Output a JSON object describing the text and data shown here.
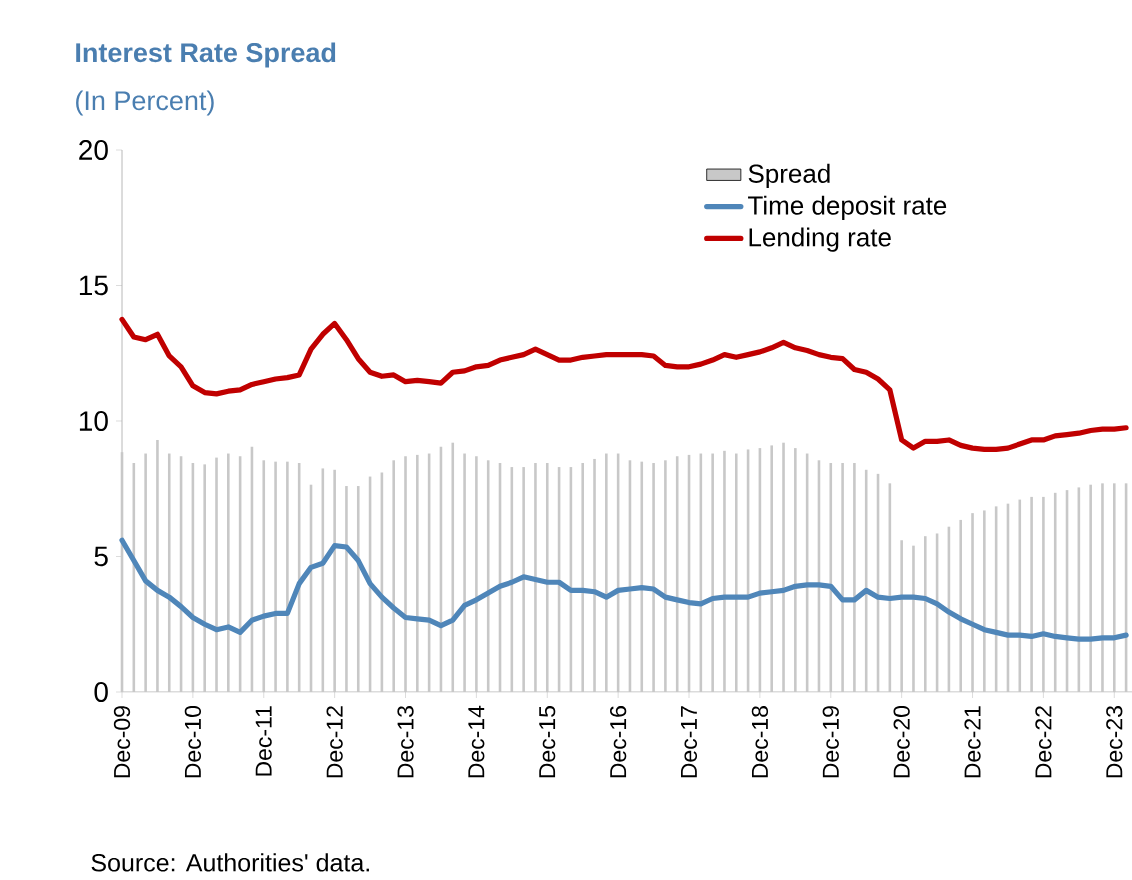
{
  "chart_data": {
    "type": "line",
    "title": "Interest Rate Spread",
    "subtitle": "(In Percent)",
    "annotations": [
      "Source: Authorities' data."
    ],
    "x": [
      "2009-12",
      "2010-02",
      "2010-04",
      "2010-06",
      "2010-08",
      "2010-10",
      "2010-12",
      "2011-02",
      "2011-04",
      "2011-06",
      "2011-08",
      "2011-10",
      "2011-12",
      "2012-02",
      "2012-04",
      "2012-06",
      "2012-08",
      "2012-10",
      "2012-12",
      "2013-02",
      "2013-04",
      "2013-06",
      "2013-08",
      "2013-10",
      "2013-12",
      "2014-02",
      "2014-04",
      "2014-06",
      "2014-08",
      "2014-10",
      "2014-12",
      "2015-02",
      "2015-04",
      "2015-06",
      "2015-08",
      "2015-10",
      "2015-12",
      "2016-02",
      "2016-04",
      "2016-06",
      "2016-08",
      "2016-10",
      "2016-12",
      "2017-02",
      "2017-04",
      "2017-06",
      "2017-08",
      "2017-10",
      "2017-12",
      "2018-02",
      "2018-04",
      "2018-06",
      "2018-08",
      "2018-10",
      "2018-12",
      "2019-02",
      "2019-04",
      "2019-06",
      "2019-08",
      "2019-10",
      "2019-12",
      "2020-02",
      "2020-04",
      "2020-06",
      "2020-08",
      "2020-10",
      "2020-12",
      "2021-02",
      "2021-04",
      "2021-06",
      "2021-08",
      "2021-10",
      "2021-12",
      "2022-02",
      "2022-04",
      "2022-06",
      "2022-08",
      "2022-10",
      "2022-12",
      "2023-02",
      "2023-04",
      "2023-06",
      "2023-08",
      "2023-10",
      "2023-12",
      "2024-02"
    ],
    "series": [
      {
        "name": "Spread",
        "type": "bar",
        "color": "#c8c8c8",
        "values": [
          8.85,
          8.45,
          8.8,
          9.3,
          8.8,
          8.7,
          8.45,
          8.4,
          8.65,
          8.8,
          8.7,
          9.05,
          8.55,
          8.5,
          8.5,
          8.45,
          7.65,
          8.25,
          8.2,
          7.6,
          7.6,
          7.95,
          8.1,
          8.55,
          8.7,
          8.75,
          8.8,
          9.05,
          9.2,
          8.8,
          8.7,
          8.55,
          8.45,
          8.3,
          8.3,
          8.45,
          8.45,
          8.3,
          8.3,
          8.45,
          8.6,
          8.8,
          8.8,
          8.55,
          8.5,
          8.45,
          8.55,
          8.7,
          8.75,
          8.8,
          8.8,
          8.9,
          8.8,
          8.95,
          9.0,
          9.1,
          9.2,
          9.0,
          8.8,
          8.55,
          8.45,
          8.45,
          8.45,
          8.2,
          8.05,
          7.7,
          5.6,
          5.4,
          5.75,
          5.85,
          6.1,
          6.35,
          6.6,
          6.7,
          6.85,
          6.95,
          7.1,
          7.2,
          7.2,
          7.35,
          7.45,
          7.55,
          7.65,
          7.7,
          7.7,
          7.7
        ]
      },
      {
        "name": "Time deposit rate",
        "type": "line",
        "color": "#4f86b9",
        "values": [
          5.6,
          4.85,
          4.1,
          3.75,
          3.5,
          3.15,
          2.75,
          2.5,
          2.3,
          2.4,
          2.2,
          2.65,
          2.8,
          2.9,
          2.9,
          4.0,
          4.6,
          4.75,
          5.4,
          5.35,
          4.85,
          4.0,
          3.5,
          3.1,
          2.75,
          2.7,
          2.65,
          2.45,
          2.65,
          3.2,
          3.4,
          3.65,
          3.9,
          4.05,
          4.25,
          4.15,
          4.05,
          4.05,
          3.75,
          3.75,
          3.7,
          3.5,
          3.75,
          3.8,
          3.85,
          3.8,
          3.5,
          3.4,
          3.3,
          3.25,
          3.45,
          3.5,
          3.5,
          3.5,
          3.65,
          3.7,
          3.75,
          3.9,
          3.95,
          3.95,
          3.9,
          3.4,
          3.4,
          3.75,
          3.5,
          3.45,
          3.5,
          3.5,
          3.45,
          3.25,
          2.95,
          2.7,
          2.5,
          2.3,
          2.2,
          2.1,
          2.1,
          2.05,
          2.15,
          2.05,
          2.0,
          1.95,
          1.95,
          2.0,
          2.0,
          2.1
        ]
      },
      {
        "name": "Lending rate",
        "type": "line",
        "color": "#c00000",
        "values": [
          13.75,
          13.1,
          13.0,
          13.2,
          12.4,
          12.0,
          11.3,
          11.05,
          11.0,
          11.1,
          11.15,
          11.35,
          11.45,
          11.55,
          11.6,
          11.7,
          12.65,
          13.2,
          13.6,
          13.0,
          12.3,
          11.8,
          11.65,
          11.7,
          11.45,
          11.5,
          11.45,
          11.4,
          11.8,
          11.85,
          12.0,
          12.05,
          12.25,
          12.35,
          12.45,
          12.65,
          12.45,
          12.25,
          12.25,
          12.35,
          12.4,
          12.45,
          12.45,
          12.45,
          12.45,
          12.4,
          12.05,
          12.0,
          12.0,
          12.1,
          12.25,
          12.45,
          12.35,
          12.45,
          12.55,
          12.7,
          12.9,
          12.7,
          12.6,
          12.45,
          12.35,
          12.3,
          11.9,
          11.8,
          11.55,
          11.15,
          9.3,
          9.0,
          9.25,
          9.25,
          9.3,
          9.1,
          9.0,
          8.95,
          8.95,
          9.0,
          9.15,
          9.3,
          9.3,
          9.45,
          9.5,
          9.55,
          9.65,
          9.7,
          9.7,
          9.75
        ]
      }
    ],
    "xlim": [
      "2009-12",
      "2024-03"
    ],
    "xticks": [
      {
        "value": "2009-12",
        "label": "Dec-09"
      },
      {
        "value": "2010-12",
        "label": "Dec-10"
      },
      {
        "value": "2011-12",
        "label": "Dec-11"
      },
      {
        "value": "2012-12",
        "label": "Dec-12"
      },
      {
        "value": "2013-12",
        "label": "Dec-13"
      },
      {
        "value": "2014-12",
        "label": "Dec-14"
      },
      {
        "value": "2015-12",
        "label": "Dec-15"
      },
      {
        "value": "2016-12",
        "label": "Dec-16"
      },
      {
        "value": "2017-12",
        "label": "Dec-17"
      },
      {
        "value": "2018-12",
        "label": "Dec-18"
      },
      {
        "value": "2019-12",
        "label": "Dec-19"
      },
      {
        "value": "2020-12",
        "label": "Dec-20"
      },
      {
        "value": "2021-12",
        "label": "Dec-21"
      },
      {
        "value": "2022-12",
        "label": "Dec-22"
      },
      {
        "value": "2023-12",
        "label": "Dec-23"
      }
    ],
    "ylim": [
      0,
      20
    ],
    "yticks": [
      0,
      5,
      10,
      15,
      20
    ],
    "legend": "top right"
  }
}
